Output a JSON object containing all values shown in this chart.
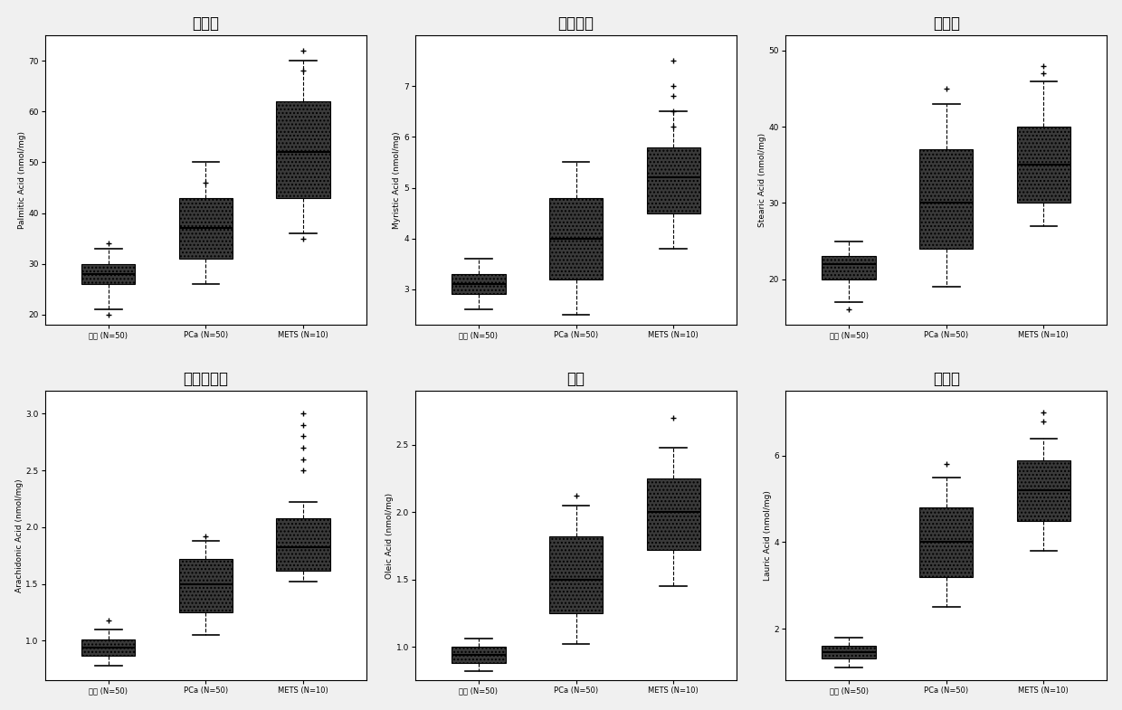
{
  "plots": [
    {
      "title": "棕榈酸",
      "ylabel": "Palmitic Acid (nmol/mg)",
      "group1": {
        "median": 28,
        "q1": 26,
        "q3": 30,
        "whislo": 21,
        "whishi": 33,
        "fliers": [
          20,
          34
        ]
      },
      "group2": {
        "median": 37,
        "q1": 31,
        "q3": 43,
        "whislo": 26,
        "whishi": 50,
        "fliers": [
          46
        ]
      },
      "group3": {
        "median": 52,
        "q1": 43,
        "q3": 62,
        "whislo": 36,
        "whishi": 70,
        "fliers": [
          72,
          68,
          35
        ]
      },
      "ylim": [
        18,
        75
      ],
      "yticks": [
        20,
        30,
        40,
        50,
        60,
        70
      ]
    },
    {
      "title": "肉豆蔻酸",
      "ylabel": "Myristic Acid (nmol/mg)",
      "group1": {
        "median": 3.1,
        "q1": 2.9,
        "q3": 3.3,
        "whislo": 2.6,
        "whishi": 3.6,
        "fliers": []
      },
      "group2": {
        "median": 4.0,
        "q1": 3.2,
        "q3": 4.8,
        "whislo": 2.5,
        "whishi": 5.5,
        "fliers": []
      },
      "group3": {
        "median": 5.2,
        "q1": 4.5,
        "q3": 5.8,
        "whislo": 3.8,
        "whishi": 6.5,
        "fliers": [
          7.5,
          7.0,
          6.8,
          6.5,
          6.2
        ]
      },
      "ylim": [
        2.3,
        8.0
      ],
      "yticks": [
        3,
        4,
        5,
        6,
        7
      ]
    },
    {
      "title": "硬脂酸",
      "ylabel": "Stearic Acid (nmol/mg)",
      "group1": {
        "median": 22,
        "q1": 20,
        "q3": 23,
        "whislo": 17,
        "whishi": 25,
        "fliers": [
          16
        ]
      },
      "group2": {
        "median": 30,
        "q1": 24,
        "q3": 37,
        "whislo": 19,
        "whishi": 43,
        "fliers": [
          45
        ]
      },
      "group3": {
        "median": 35,
        "q1": 30,
        "q3": 40,
        "whislo": 27,
        "whishi": 46,
        "fliers": [
          48,
          47
        ]
      },
      "ylim": [
        14,
        52
      ],
      "yticks": [
        20,
        30,
        40,
        50
      ]
    },
    {
      "title": "花生四烯酸",
      "ylabel": "Arachidonic Acid (nmol/mg)",
      "group1": {
        "median": 0.94,
        "q1": 0.87,
        "q3": 1.01,
        "whislo": 0.78,
        "whishi": 1.1,
        "fliers": [
          1.18
        ]
      },
      "group2": {
        "median": 1.5,
        "q1": 1.25,
        "q3": 1.72,
        "whislo": 1.05,
        "whishi": 1.88,
        "fliers": [
          1.92
        ]
      },
      "group3": {
        "median": 1.82,
        "q1": 1.62,
        "q3": 2.08,
        "whislo": 1.52,
        "whishi": 2.22,
        "fliers": [
          2.5,
          2.6,
          2.7,
          2.8,
          2.9,
          3.0
        ]
      },
      "ylim": [
        0.65,
        3.2
      ],
      "yticks": [
        1.0,
        1.5,
        2.0,
        2.5,
        3.0
      ]
    },
    {
      "title": "油酸",
      "ylabel": "Oleic Acid (nmol/mg)",
      "group1": {
        "median": 0.94,
        "q1": 0.88,
        "q3": 1.0,
        "whislo": 0.82,
        "whishi": 1.06,
        "fliers": []
      },
      "group2": {
        "median": 1.5,
        "q1": 1.25,
        "q3": 1.82,
        "whislo": 1.02,
        "whishi": 2.05,
        "fliers": [
          2.12
        ]
      },
      "group3": {
        "median": 2.0,
        "q1": 1.72,
        "q3": 2.25,
        "whislo": 1.45,
        "whishi": 2.48,
        "fliers": [
          2.7
        ]
      },
      "ylim": [
        0.75,
        2.9
      ],
      "yticks": [
        1.0,
        1.5,
        2.0,
        2.5
      ]
    },
    {
      "title": "月桂酸",
      "ylabel": "Lauric Acid (nmol/mg)",
      "group1": {
        "median": 1.45,
        "q1": 1.3,
        "q3": 1.6,
        "whislo": 1.1,
        "whishi": 1.8,
        "fliers": []
      },
      "group2": {
        "median": 4.0,
        "q1": 3.2,
        "q3": 4.8,
        "whislo": 2.5,
        "whishi": 5.5,
        "fliers": [
          5.8
        ]
      },
      "group3": {
        "median": 5.2,
        "q1": 4.5,
        "q3": 5.9,
        "whislo": 3.8,
        "whishi": 6.4,
        "fliers": [
          7.0,
          6.8
        ]
      },
      "ylim": [
        0.8,
        7.5
      ],
      "yticks": [
        2,
        4,
        6
      ]
    }
  ],
  "group_labels": [
    "良好 (N=50)",
    "PCa (N=50)",
    "METS (N=10)"
  ],
  "box_facecolor": "#3a3a3a",
  "background_color": "#f0f0f0",
  "title_fontsize": 12,
  "label_fontsize": 6.5,
  "tick_fontsize": 6.5,
  "xtick_fontsize": 6.0
}
